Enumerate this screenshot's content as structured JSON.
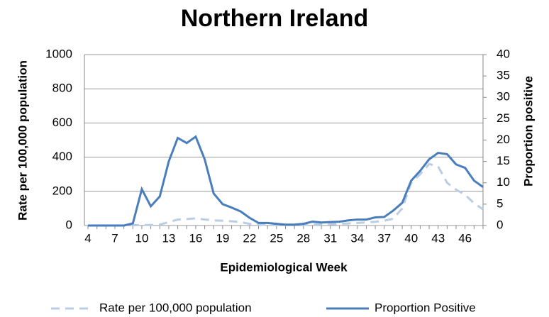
{
  "chart_data": {
    "type": "line",
    "title": "Northern Ireland",
    "xlabel": "Epidemiological Week",
    "ylabel": "Rate per 100,000 population",
    "y2label": "Proportion positive",
    "x": [
      4,
      5,
      6,
      7,
      8,
      9,
      10,
      11,
      12,
      13,
      14,
      15,
      16,
      17,
      18,
      19,
      20,
      21,
      22,
      23,
      24,
      25,
      26,
      27,
      28,
      29,
      30,
      31,
      32,
      33,
      34,
      35,
      36,
      37,
      38,
      39,
      40,
      41,
      42,
      43,
      44,
      45,
      46,
      47,
      48
    ],
    "xlim": [
      4,
      48
    ],
    "xticks": [
      4,
      7,
      10,
      13,
      16,
      19,
      22,
      25,
      28,
      31,
      34,
      37,
      40,
      43,
      46
    ],
    "ylim": [
      0,
      1000
    ],
    "yticks": [
      0,
      200,
      400,
      600,
      800,
      1000
    ],
    "y2lim": [
      0,
      40
    ],
    "y2ticks": [
      0,
      5,
      10,
      15,
      20,
      25,
      30,
      35,
      40
    ],
    "grid": true,
    "series": [
      {
        "name": "Rate per 100,000 population",
        "color": "#b9cde5",
        "dashed": true,
        "values": [
          0,
          0,
          0,
          0,
          0,
          2,
          3,
          3,
          5,
          20,
          35,
          38,
          42,
          35,
          30,
          28,
          25,
          20,
          10,
          5,
          4,
          3,
          2,
          2,
          3,
          5,
          6,
          8,
          10,
          12,
          15,
          18,
          22,
          28,
          40,
          100,
          250,
          300,
          360,
          345,
          250,
          210,
          180,
          130,
          95
        ]
      },
      {
        "name": "Proportion Positive",
        "color": "#4a7ebb",
        "axis": "y2",
        "values": [
          0,
          0,
          0,
          0,
          0,
          0.5,
          8.5,
          4.5,
          6.8,
          15,
          20.5,
          19.3,
          20.8,
          15.5,
          7.5,
          5,
          4.2,
          3.3,
          1.8,
          0.6,
          0.6,
          0.4,
          0.2,
          0.2,
          0.4,
          0.9,
          0.7,
          0.8,
          0.9,
          1.2,
          1.4,
          1.4,
          1.9,
          2,
          3.5,
          5.3,
          10.5,
          12.8,
          15.5,
          17,
          16.7,
          14.3,
          13.5,
          10.5,
          9
        ]
      }
    ]
  }
}
